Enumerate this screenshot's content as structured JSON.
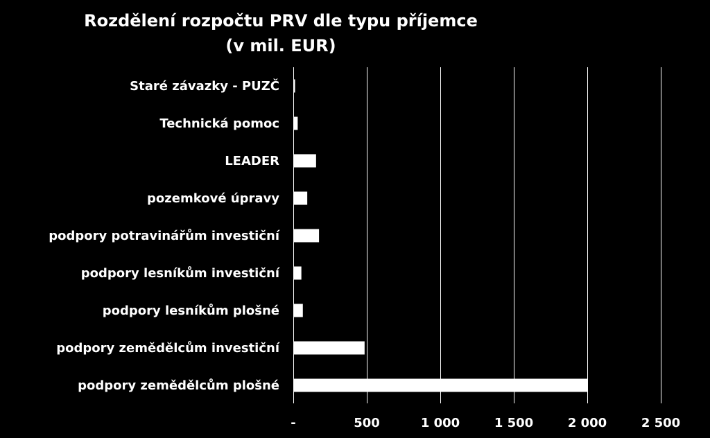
{
  "chart_data": {
    "type": "bar",
    "orientation": "horizontal",
    "title": "Rozdělení rozpočtu PRV dle typu příjemce",
    "subtitle": "(v mil. EUR)",
    "categories": [
      "Staré závazky - PUZČ",
      "Technická pomoc",
      "LEADER",
      "pozemkové úpravy",
      "podpory potravinářům investiční",
      "podpory lesníkům investiční",
      "podpory lesníkům plošné",
      "podpory zemědělcům investiční",
      "podpory zemědělcům plošné"
    ],
    "values": [
      12,
      30,
      155,
      95,
      175,
      55,
      65,
      485,
      2000
    ],
    "xlim": [
      0,
      2500
    ],
    "ticks": [
      0,
      500,
      1000,
      1500,
      2000,
      2500
    ],
    "tick_labels": [
      "-",
      "500",
      "1 000",
      "1 500",
      "2 000",
      "2 500"
    ],
    "grid": true,
    "colors": {
      "background": "#000000",
      "bar": "#ffffff",
      "text": "#ffffff",
      "grid": "#ffffff"
    }
  }
}
